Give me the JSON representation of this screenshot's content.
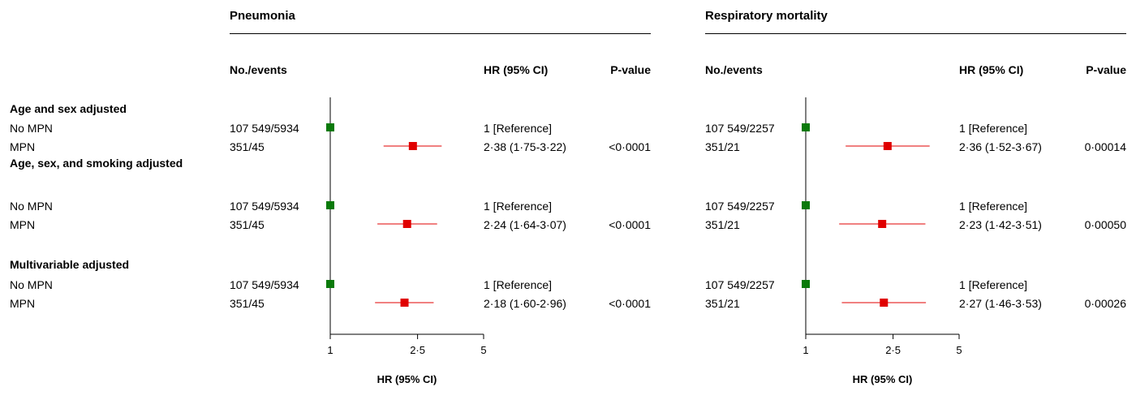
{
  "groups": {
    "g0": "Age and sex adjusted",
    "g1": "Age, sex, and smoking adjusted",
    "g2": "Multivariable adjusted"
  },
  "rows": {
    "r0": "No MPN",
    "r1": "MPN",
    "r2": "No MPN",
    "r3": "MPN",
    "r4": "No MPN",
    "r5": "MPN"
  },
  "panels": {
    "p0": {
      "title": "Pneumonia",
      "col_events": "No./events",
      "col_hr": "HR (95% CI)",
      "col_p": "P-value",
      "events": [
        "107 549/5934",
        "351/45",
        "107 549/5934",
        "351/45",
        "107 549/5934",
        "351/45"
      ],
      "hr": [
        "1 [Reference]",
        "2·38 (1·75-3·22)",
        "1 [Reference]",
        "2·24 (1·64-3·07)",
        "1 [Reference]",
        "2·18 (1·60-2·96)"
      ],
      "p": [
        "",
        "<0·0001",
        "",
        "<0·0001",
        "",
        "<0·0001"
      ]
    },
    "p1": {
      "title": "Respiratory mortality",
      "col_events": "No./events",
      "col_hr": "HR (95% CI)",
      "col_p": "P-value",
      "events": [
        "107 549/2257",
        "351/21",
        "107 549/2257",
        "351/21",
        "107 549/2257",
        "351/21"
      ],
      "hr": [
        "1 [Reference]",
        "2·36 (1·52-3·67)",
        "1 [Reference]",
        "2·23 (1·42-3·51)",
        "1 [Reference]",
        "2·27 (1·46-3·53)"
      ],
      "p": [
        "",
        "0·00014",
        "",
        "0·00050",
        "",
        "0·00026"
      ]
    }
  },
  "chart_data": [
    {
      "type": "forest",
      "title": "Pneumonia",
      "xlabel": "HR (95% CI)",
      "x_scale": "log",
      "x_ticks": [
        1,
        2.5,
        5
      ],
      "x_tick_labels": [
        "1",
        "2·5",
        "5"
      ],
      "xlim": [
        1,
        5
      ],
      "reference_line": 1,
      "categories": [
        "No MPN",
        "MPN",
        "No MPN",
        "MPN",
        "No MPN",
        "MPN"
      ],
      "hr": [
        1,
        2.38,
        1,
        2.24,
        1,
        2.18
      ],
      "ci_low": [
        null,
        1.75,
        null,
        1.64,
        null,
        1.6
      ],
      "ci_high": [
        null,
        3.22,
        null,
        3.07,
        null,
        2.96
      ],
      "colors": {
        "reference": "#0a7a0a",
        "estimate": "#e00000"
      }
    },
    {
      "type": "forest",
      "title": "Respiratory mortality",
      "xlabel": "HR (95% CI)",
      "x_scale": "log",
      "x_ticks": [
        1,
        2.5,
        5
      ],
      "x_tick_labels": [
        "1",
        "2·5",
        "5"
      ],
      "xlim": [
        1,
        5
      ],
      "reference_line": 1,
      "categories": [
        "No MPN",
        "MPN",
        "No MPN",
        "MPN",
        "No MPN",
        "MPN"
      ],
      "hr": [
        1,
        2.36,
        1,
        2.23,
        1,
        2.27
      ],
      "ci_low": [
        null,
        1.52,
        null,
        1.42,
        null,
        1.46
      ],
      "ci_high": [
        null,
        3.67,
        null,
        3.51,
        null,
        3.53
      ],
      "colors": {
        "reference": "#0a7a0a",
        "estimate": "#e00000"
      }
    }
  ]
}
